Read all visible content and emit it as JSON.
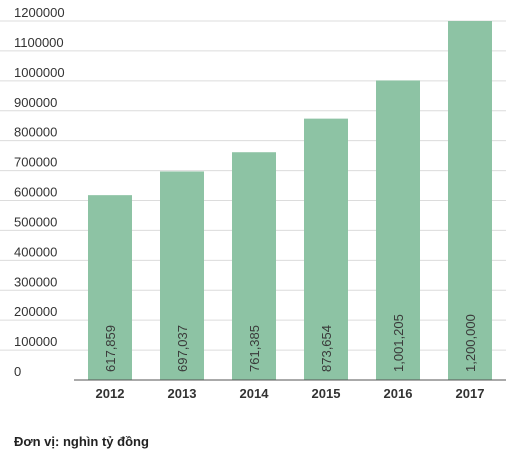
{
  "chart_data": {
    "type": "bar",
    "categories": [
      "2012",
      "2013",
      "2014",
      "2015",
      "2016",
      "2017"
    ],
    "values": [
      617859,
      697037,
      761385,
      873654,
      1001205,
      1200000
    ],
    "data_labels": [
      "617,859",
      "697,037",
      "761,385",
      "873,654",
      "1,001,205",
      "1,200,000"
    ],
    "yticks": [
      "0",
      "100000",
      "200000",
      "300000",
      "400000",
      "500000",
      "600000",
      "700000",
      "800000",
      "900000",
      "1000000",
      "1100000",
      "1200000"
    ],
    "ylim": [
      0,
      1200000
    ],
    "grid": true,
    "bar_color": "#8dc3a4",
    "title": "",
    "xlabel": "",
    "ylabel": ""
  },
  "note": "Đơn vị: nghìn tỷ đồng"
}
